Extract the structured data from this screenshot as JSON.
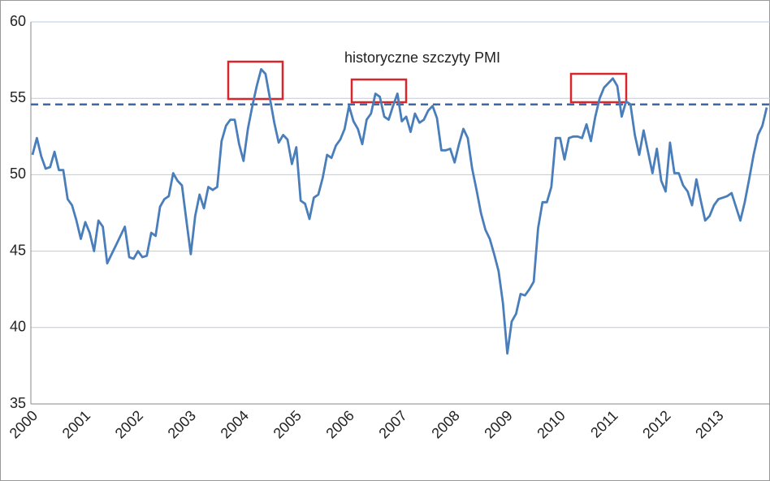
{
  "chart_data": {
    "type": "line",
    "annotation": "historyczne szczyty PMI",
    "categories": [
      "2000",
      null,
      null,
      null,
      null,
      null,
      null,
      null,
      null,
      null,
      null,
      null,
      "2001",
      null,
      null,
      null,
      null,
      null,
      null,
      null,
      null,
      null,
      null,
      null,
      "2002",
      null,
      null,
      null,
      null,
      null,
      null,
      null,
      null,
      null,
      null,
      null,
      "2003",
      null,
      null,
      null,
      null,
      null,
      null,
      null,
      null,
      null,
      null,
      null,
      "2004",
      null,
      null,
      null,
      null,
      null,
      null,
      null,
      null,
      null,
      null,
      null,
      "2005",
      null,
      null,
      null,
      null,
      null,
      null,
      null,
      null,
      null,
      null,
      null,
      "2006",
      null,
      null,
      null,
      null,
      null,
      null,
      null,
      null,
      null,
      null,
      null,
      "2007",
      null,
      null,
      null,
      null,
      null,
      null,
      null,
      null,
      null,
      null,
      null,
      "2008",
      null,
      null,
      null,
      null,
      null,
      null,
      null,
      null,
      null,
      null,
      null,
      "2009",
      null,
      null,
      null,
      null,
      null,
      null,
      null,
      null,
      null,
      null,
      null,
      "2010",
      null,
      null,
      null,
      null,
      null,
      null,
      null,
      null,
      null,
      null,
      null,
      "2011",
      null,
      null,
      null,
      null,
      null,
      null,
      null,
      null,
      null,
      null,
      null,
      "2012",
      null,
      null,
      null,
      null,
      null,
      null,
      null,
      null,
      null,
      null,
      null,
      "2013",
      null,
      null,
      null,
      null,
      null,
      null,
      null,
      null,
      null,
      null,
      null
    ],
    "series": [
      {
        "color": "#4a7ebb",
        "values": [
          51.3,
          52.4,
          51.2,
          50.4,
          50.5,
          51.5,
          50.3,
          50.3,
          48.4,
          48.0,
          47.0,
          45.8,
          46.9,
          46.2,
          45.0,
          47.0,
          46.6,
          44.2,
          44.8,
          45.4,
          46.0,
          46.6,
          44.6,
          44.5,
          45.0,
          44.6,
          44.7,
          46.2,
          46.0,
          47.9,
          48.4,
          48.6,
          50.1,
          49.6,
          49.3,
          47.0,
          44.8,
          47.3,
          48.7,
          47.8,
          49.2,
          49.0,
          49.2,
          52.2,
          53.2,
          53.6,
          53.6,
          52.0,
          50.9,
          53.0,
          54.5,
          55.8,
          56.9,
          56.6,
          55.0,
          53.4,
          52.1,
          52.6,
          52.3,
          50.7,
          51.8,
          48.3,
          48.1,
          47.1,
          48.5,
          48.7,
          49.8,
          51.3,
          51.1,
          51.9,
          52.3,
          53.0,
          54.5,
          53.5,
          53.0,
          52.0,
          53.6,
          54.0,
          55.3,
          55.1,
          53.8,
          53.6,
          54.5,
          55.3,
          53.5,
          53.8,
          52.8,
          54.0,
          53.4,
          53.6,
          54.2,
          54.5,
          53.7,
          51.6,
          51.6,
          51.7,
          50.8,
          52.0,
          53.0,
          52.4,
          50.4,
          49.0,
          47.5,
          46.4,
          45.8,
          44.8,
          43.7,
          41.6,
          38.3,
          40.4,
          40.9,
          42.2,
          42.1,
          42.5,
          43.0,
          46.5,
          48.2,
          48.2,
          49.2,
          52.4,
          52.4,
          51.0,
          52.4,
          52.5,
          52.5,
          52.4,
          53.3,
          52.2,
          53.8,
          55.0,
          55.7,
          56.0,
          56.3,
          55.8,
          53.8,
          54.8,
          54.6,
          52.6,
          51.3,
          52.9,
          51.5,
          50.1,
          51.7,
          49.6,
          48.9,
          52.1,
          50.1,
          50.1,
          49.3,
          48.9,
          48.0,
          49.7,
          48.3,
          47.0,
          47.3,
          48.0,
          48.4,
          48.5,
          48.6,
          48.8,
          47.9,
          47.0,
          48.2,
          49.7,
          51.3,
          52.6,
          53.2,
          54.4
        ]
      }
    ],
    "reference_line": 54.6,
    "ylim": [
      35,
      60
    ],
    "yticks": [
      35,
      40,
      45,
      50,
      55,
      60
    ],
    "grid": true
  }
}
